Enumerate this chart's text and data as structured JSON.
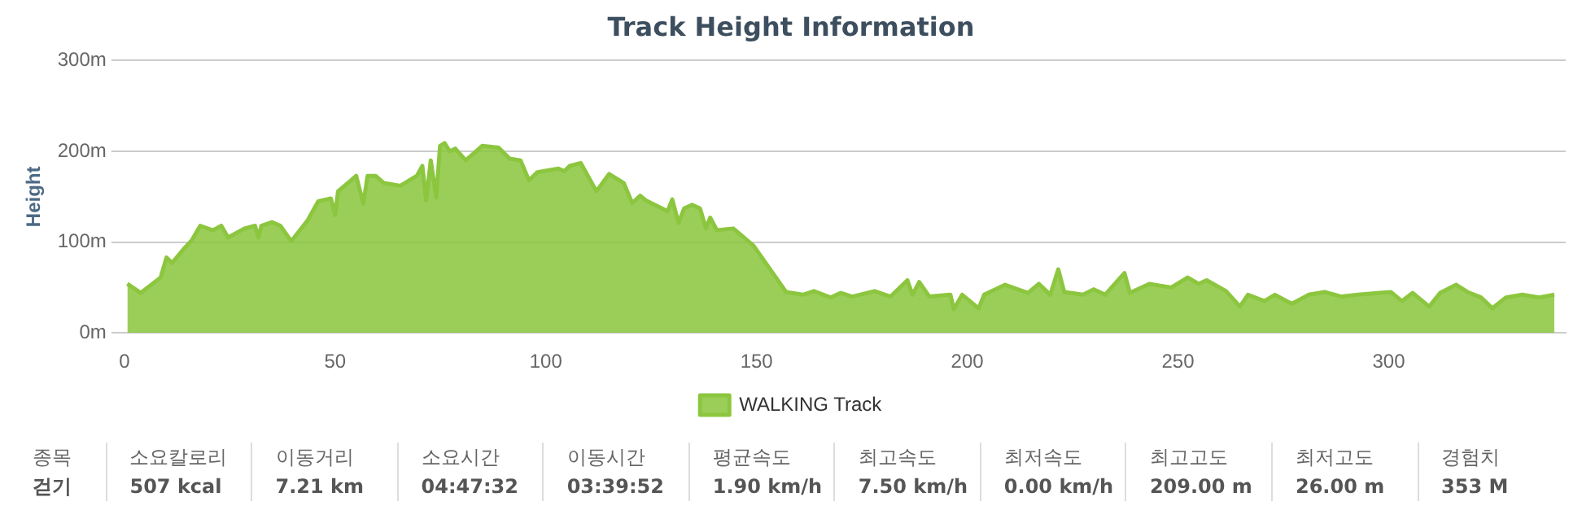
{
  "chart_data": {
    "type": "area",
    "title": "Track Height Information",
    "ylabel": "Height",
    "xlim": [
      0,
      342
    ],
    "xticks": [
      0,
      50,
      100,
      150,
      200,
      250,
      300
    ],
    "ylim": [
      0,
      300
    ],
    "yticks": [
      {
        "value": 0,
        "label": "0m"
      },
      {
        "value": 100,
        "label": "100m"
      },
      {
        "value": 200,
        "label": "200m"
      },
      {
        "value": 300,
        "label": "300m"
      }
    ],
    "grid": "y",
    "legend": "bottom",
    "marker": "none",
    "series": [
      {
        "name": "WALKING Track",
        "color": "#8cc63f",
        "x": [
          0.7,
          3.9,
          8.6,
          10,
          11.3,
          14,
          16,
          18,
          21,
          23,
          24.6,
          28.5,
          31,
          31.8,
          32.5,
          35,
          37,
          39.6,
          43.5,
          46,
          49,
          50,
          50.7,
          53.8,
          55,
          56.7,
          57.7,
          59.6,
          61.6,
          65.5,
          69.4,
          70.7,
          71.6,
          72.7,
          74,
          74.9,
          76,
          77.2,
          78.5,
          81,
          84.9,
          88.8,
          91.4,
          94,
          96,
          98,
          103,
          104.4,
          105.7,
          108.3,
          112,
          115,
          118.5,
          120.5,
          122.4,
          123.7,
          128.9,
          130,
          131.5,
          132.8,
          134.7,
          136.6,
          138,
          139,
          140.6,
          144.5,
          149.3,
          154.6,
          157,
          161,
          163.6,
          167.5,
          170,
          172.7,
          178,
          181.8,
          185.8,
          187,
          188.6,
          191,
          196,
          196.8,
          198.8,
          202.7,
          204,
          209,
          214.4,
          217,
          219.7,
          221.6,
          223,
          227.5,
          230,
          232.7,
          237.3,
          238.6,
          243.2,
          248.4,
          252.3,
          254.9,
          256.8,
          261.4,
          264.7,
          266.6,
          270.5,
          273,
          277,
          281,
          284.8,
          288.8,
          292.7,
          297.9,
          300.5,
          303.1,
          305.7,
          309.6,
          312.2,
          316,
          318.7,
          321.9,
          324.6,
          327.8,
          331.7,
          335.7,
          339.3
        ],
        "values": [
          54,
          44,
          61,
          83,
          77,
          92,
          102,
          118,
          113,
          118,
          105,
          115,
          118,
          105,
          118,
          122,
          118,
          101,
          124,
          145,
          148,
          130,
          156,
          168,
          173,
          142,
          173,
          173,
          165,
          162,
          173,
          184,
          146,
          190,
          149,
          206,
          209,
          200,
          203,
          190,
          206,
          204,
          192,
          190,
          168,
          177,
          181,
          178,
          184,
          187,
          156,
          175,
          165,
          143,
          151,
          146,
          134,
          147,
          121,
          137,
          141,
          137,
          115,
          127,
          113,
          115,
          96,
          61,
          45,
          42,
          46,
          39,
          44,
          40,
          46,
          40,
          58,
          42,
          56,
          40,
          42,
          26,
          42,
          27,
          42,
          53,
          44,
          54,
          42,
          70,
          45,
          42,
          48,
          42,
          66,
          44,
          54,
          50,
          61,
          54,
          58,
          46,
          29,
          42,
          35,
          42,
          32,
          42,
          45,
          40,
          42,
          44,
          45,
          35,
          44,
          29,
          44,
          53,
          45,
          39,
          27,
          39,
          42,
          39,
          42
        ]
      }
    ],
    "annotations": [
      "종목",
      "걷기",
      "소요칼로리",
      "507 kcal",
      "이동거리",
      "7.21 km",
      "소요시간",
      "04:47:32",
      "이동시간",
      "03:39:52",
      "평균속도",
      "1.90 km/h",
      "최고속도",
      "7.50 km/h",
      "최저속도",
      "0.00 km/h",
      "최고고도",
      "209.00 m",
      "최저고도",
      "26.00 m",
      "경험치",
      "353 M"
    ]
  }
}
